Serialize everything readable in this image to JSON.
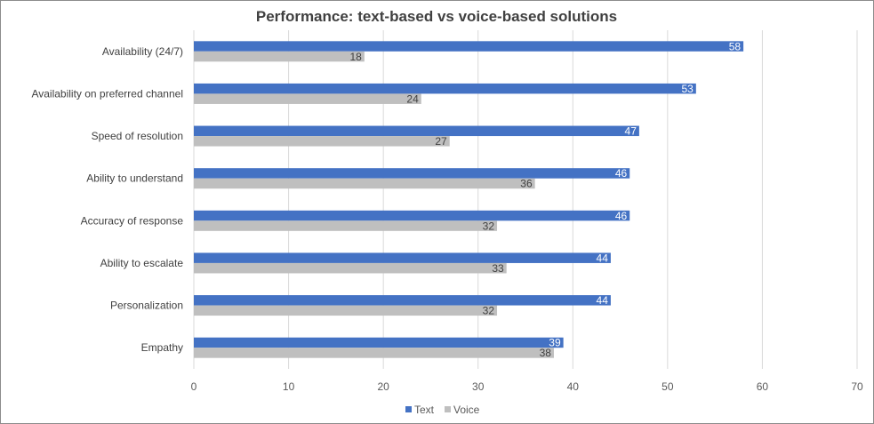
{
  "chart_data": {
    "type": "bar",
    "orientation": "horizontal",
    "title": "Performance: text-based vs voice-based solutions",
    "categories": [
      "Availability (24/7)",
      "Availability on preferred channel",
      "Speed of resolution",
      "Ability to understand",
      "Accuracy of response",
      "Ability to escalate",
      "Personalization",
      "Empathy"
    ],
    "series": [
      {
        "name": "Text",
        "color": "#4472c4",
        "values": [
          58,
          53,
          47,
          46,
          46,
          44,
          44,
          39
        ]
      },
      {
        "name": "Voice",
        "color": "#bfbfbf",
        "values": [
          18,
          24,
          27,
          36,
          32,
          33,
          32,
          38
        ]
      }
    ],
    "xlim": [
      0,
      70
    ],
    "xticks": [
      0,
      10,
      20,
      30,
      40,
      50,
      60,
      70
    ],
    "grid": true,
    "legend": "bottom"
  }
}
